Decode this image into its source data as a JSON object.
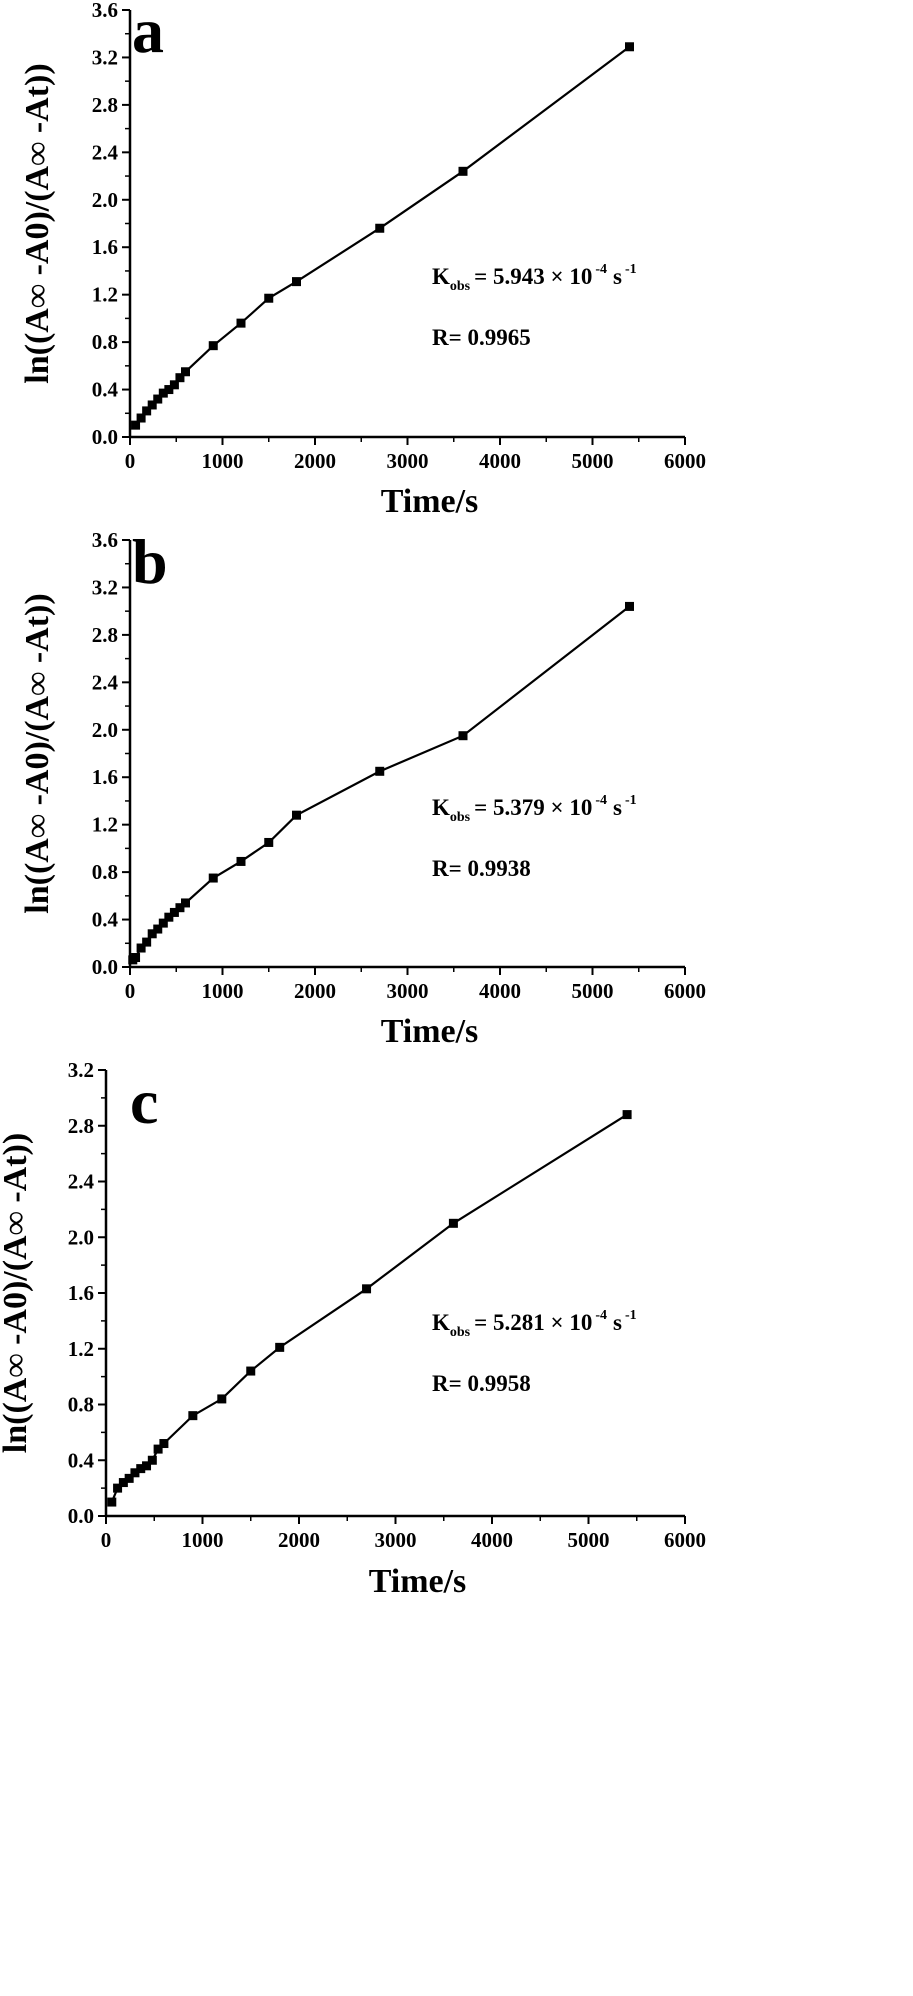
{
  "chart_data": [
    {
      "type": "line",
      "panel_label": "a",
      "xlabel": "Time/s",
      "ylabel": "ln((A∞ -A0)/(A∞ -At))",
      "xlim": [
        0,
        6000
      ],
      "ylim": [
        0,
        3.6
      ],
      "xticks": [
        "0",
        "1000",
        "2000",
        "3000",
        "4000",
        "5000",
        "6000"
      ],
      "yticks": [
        "0.0",
        "0.4",
        "0.8",
        "1.2",
        "1.6",
        "2.0",
        "2.4",
        "2.8",
        "3.2",
        "3.6"
      ],
      "series": [
        {
          "marker": "square",
          "x": [
            60,
            120,
            180,
            240,
            300,
            360,
            420,
            480,
            540,
            600,
            900,
            1200,
            1500,
            1800,
            2700,
            3600,
            5400
          ],
          "y": [
            0.1,
            0.16,
            0.22,
            0.27,
            0.32,
            0.37,
            0.4,
            0.44,
            0.5,
            0.55,
            0.77,
            0.96,
            1.17,
            1.31,
            1.76,
            2.24,
            3.29
          ]
        }
      ],
      "annotations": {
        "k_prefix": "K",
        "k_sub": "obs",
        "k_value": "= 5.943 × 10",
        "k_exp": "-4",
        "k_unit": "s",
        "k_unit_exp": "-1",
        "r_text": "R= 0.9965"
      }
    },
    {
      "type": "line",
      "panel_label": "b",
      "xlabel": "Time/s",
      "ylabel": "ln((A∞ -A0)/(A∞ -At))",
      "xlim": [
        0,
        6000
      ],
      "ylim": [
        0,
        3.6
      ],
      "xticks": [
        "0",
        "1000",
        "2000",
        "3000",
        "4000",
        "5000",
        "6000"
      ],
      "yticks": [
        "0.0",
        "0.4",
        "0.8",
        "1.2",
        "1.6",
        "2.0",
        "2.4",
        "2.8",
        "3.2",
        "3.6"
      ],
      "series": [
        {
          "marker": "square",
          "x": [
            30,
            60,
            120,
            180,
            240,
            300,
            360,
            420,
            480,
            540,
            600,
            900,
            1200,
            1500,
            1800,
            2700,
            3600,
            5400
          ],
          "y": [
            0.06,
            0.08,
            0.16,
            0.21,
            0.28,
            0.32,
            0.37,
            0.42,
            0.46,
            0.5,
            0.54,
            0.75,
            0.89,
            1.05,
            1.28,
            1.65,
            1.95,
            3.04
          ]
        }
      ],
      "annotations": {
        "k_prefix": "K",
        "k_sub": "obs",
        "k_value": "= 5.379 × 10",
        "k_exp": "-4",
        "k_unit": "s",
        "k_unit_exp": "-1",
        "r_text": "R= 0.9938"
      }
    },
    {
      "type": "line",
      "panel_label": "c",
      "xlabel": "Time/s",
      "ylabel": "ln((A∞ -A0)/(A∞ -At))",
      "xlim": [
        0,
        6000
      ],
      "ylim": [
        0,
        3.2
      ],
      "xticks": [
        "0",
        "1000",
        "2000",
        "3000",
        "4000",
        "5000",
        "6000"
      ],
      "yticks": [
        "0.0",
        "0.4",
        "0.8",
        "1.2",
        "1.6",
        "2.0",
        "2.4",
        "2.8",
        "3.2"
      ],
      "series": [
        {
          "marker": "square",
          "x": [
            60,
            120,
            180,
            240,
            300,
            360,
            420,
            480,
            540,
            600,
            900,
            1200,
            1500,
            1800,
            2700,
            3600,
            5400
          ],
          "y": [
            0.1,
            0.2,
            0.24,
            0.27,
            0.31,
            0.34,
            0.36,
            0.4,
            0.48,
            0.52,
            0.72,
            0.84,
            1.04,
            1.21,
            1.63,
            2.1,
            2.88
          ]
        }
      ],
      "annotations": {
        "k_prefix": "K",
        "k_sub": "obs",
        "k_value": "= 5.281 × 10",
        "k_exp": "-4",
        "k_unit": "s",
        "k_unit_exp": "-1",
        "r_text": "R= 0.9958"
      }
    }
  ]
}
